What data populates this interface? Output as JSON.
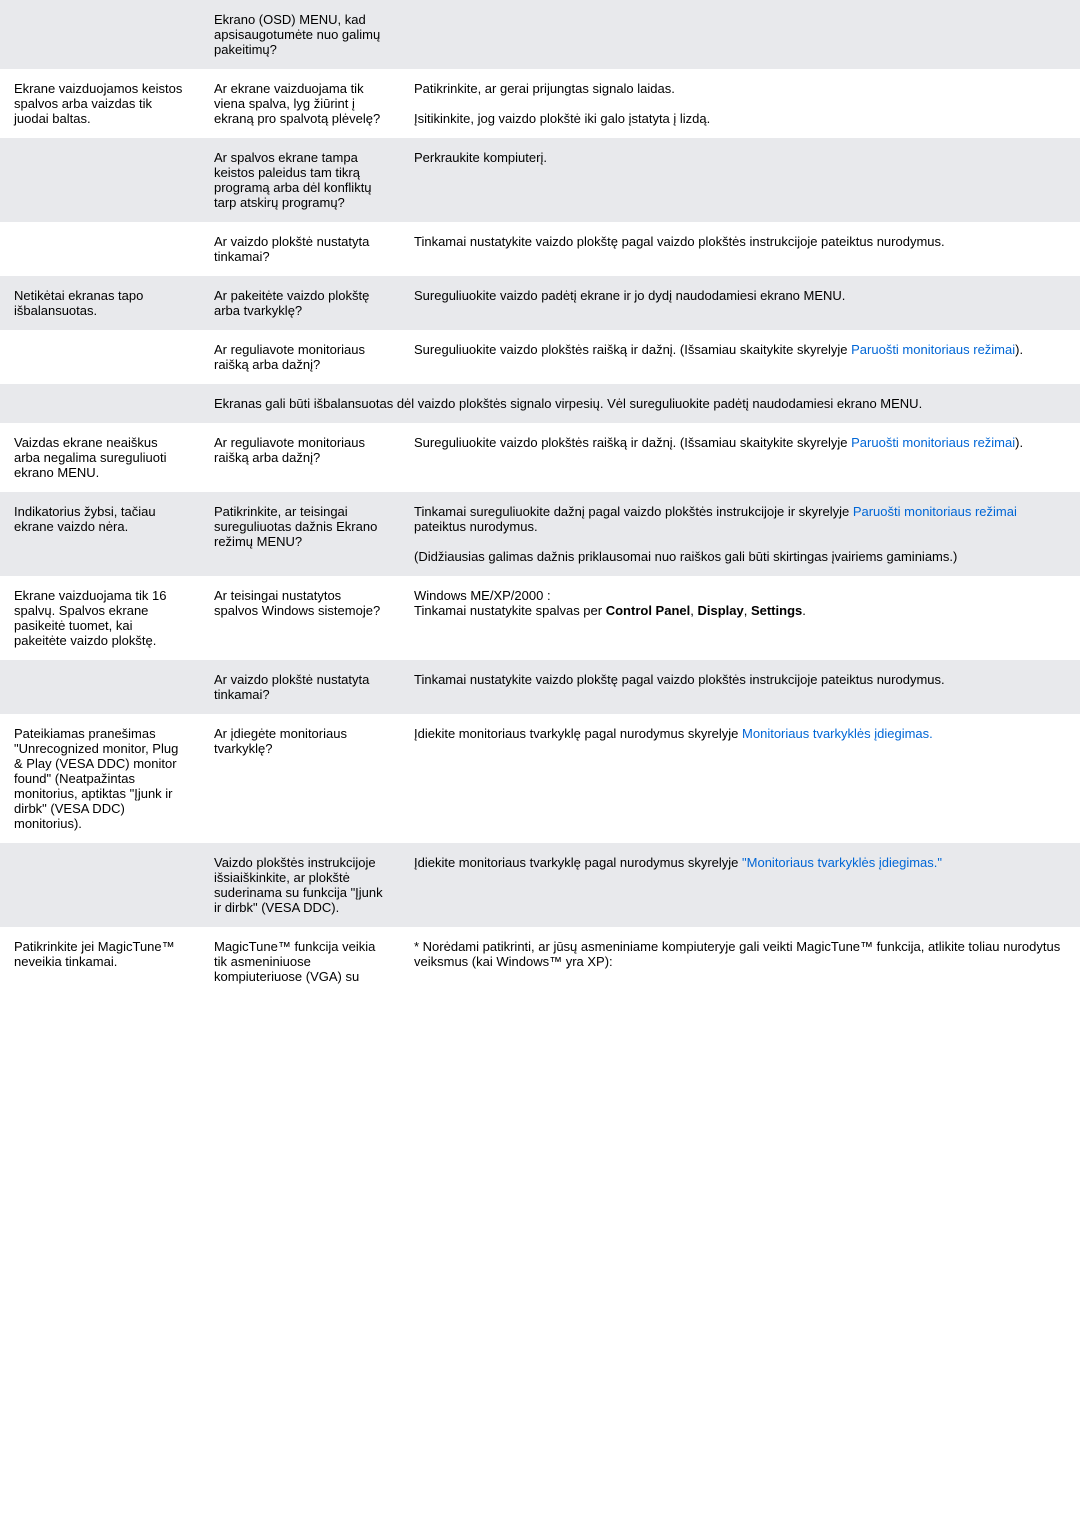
{
  "rows": [
    {
      "cls": "alt",
      "c1": "",
      "c2": "Ekrano (OSD) MENU, kad apsisaugotumėte nuo galimų pakeitimų?",
      "c3": ""
    },
    {
      "cls": "plain",
      "c1": "Ekrane vaizduojamos keistos spalvos arba vaizdas tik juodai baltas.",
      "c2": "Ar ekrane vaizduojama tik viena spalva, lyg žiūrint į ekraną pro spalvotą plėvelę?",
      "c3": "Patikrinkite, ar gerai prijungtas signalo laidas.<br><br>Įsitikinkite, jog vaizdo plokštė iki galo įstatyta į lizdą."
    },
    {
      "cls": "alt",
      "c1": "",
      "c2": "Ar spalvos ekrane tampa keistos paleidus tam tikrą programą arba dėl konfliktų tarp atskirų programų?",
      "c3": "Perkraukite kompiuterį."
    },
    {
      "cls": "plain",
      "c1": "",
      "c2": "Ar vaizdo plokštė nustatyta tinkamai?",
      "c3": "Tinkamai nustatykite vaizdo plokštę pagal vaizdo plokštės instrukcijoje pateiktus nurodymus."
    },
    {
      "cls": "alt",
      "c1": "Netikėtai ekranas tapo išbalansuotas.",
      "c2": "Ar pakeitėte vaizdo plokštę arba tvarkyklę?",
      "c3": "Sureguliuokite vaizdo padėtį ekrane ir jo dydį naudodamiesi ekrano MENU."
    },
    {
      "cls": "plain",
      "c1": "",
      "c2": "Ar reguliavote monitoriaus raišką arba dažnį?",
      "c3": "Sureguliuokite vaizdo plokštės raišką ir dažnį. (Išsamiau skaitykite skyrelyje <span class=\"inline-link\">Paruošti monitoriaus režimai</span>)."
    },
    {
      "cls": "alt",
      "c1": "",
      "c2": "",
      "c3": "Ekranas gali būti išbalansuotas dėl vaizdo plokštės signalo virpesių. Vėl sureguliuokite padėtį naudodamiesi ekrano MENU.",
      "span": 2
    },
    {
      "cls": "plain",
      "c1": "Vaizdas ekrane neaiškus arba negalima sureguliuoti ekrano MENU.",
      "c2": "Ar reguliavote monitoriaus raišką arba dažnį?",
      "c3": "Sureguliuokite vaizdo plokštės raišką ir dažnį. (Išsamiau skaitykite skyrelyje <span class=\"inline-link\">Paruošti monitoriaus režimai</span>)."
    },
    {
      "cls": "alt",
      "c1": "Indikatorius žybsi, tačiau ekrane vaizdo nėra.",
      "c2": "Patikrinkite, ar teisingai sureguliuotas dažnis Ekrano režimų MENU?",
      "c3": "Tinkamai sureguliuokite dažnį pagal vaizdo plokštės instrukcijoje ir skyrelyje <span class=\"inline-link\">Paruošti monitoriaus režimai</span> pateiktus nurodymus.<br><br>(Didžiausias galimas dažnis priklausomai nuo raiškos gali būti skirtingas įvairiems gaminiams.)"
    },
    {
      "cls": "plain",
      "c1": "Ekrane vaizduojama tik 16 spalvų. Spalvos ekrane pasikeitė tuomet, kai pakeitėte vaizdo plokštę.",
      "c2": "Ar teisingai nustatytos spalvos Windows sistemoje?",
      "c3": "Windows ME/XP/2000 :<br>Tinkamai nustatykite spalvas per <b>Control Panel</b>, <b>Display</b>, <b>Settings</b>."
    },
    {
      "cls": "alt",
      "c1": "",
      "c2": "Ar vaizdo plokštė nustatyta tinkamai?",
      "c3": "Tinkamai nustatykite vaizdo plokštę pagal vaizdo plokštės instrukcijoje pateiktus nurodymus."
    },
    {
      "cls": "plain",
      "c1": "Pateikiamas pranešimas \"Unrecognized monitor, Plug & Play (VESA DDC) monitor found\" (Neatpažintas monitorius, aptiktas \"Įjunk ir dirbk\" (VESA DDC) monitorius).",
      "c2": "Ar įdiegėte monitoriaus tvarkyklę?",
      "c3": "Įdiekite monitoriaus tvarkyklę pagal nurodymus skyrelyje <span class=\"inline-link\">Monitoriaus tvarkyklės įdiegimas.</span>"
    },
    {
      "cls": "alt",
      "c1": "",
      "c2": "Vaizdo plokštės instrukcijoje išsiaiškinkite, ar plokštė suderinama su funkcija \"Įjunk ir dirbk\" (VESA DDC).",
      "c3": "Įdiekite monitoriaus tvarkyklę pagal nurodymus skyrelyje <span class=\"inline-link\">\"Monitoriaus tvarkyklės įdiegimas.\"</span>"
    },
    {
      "cls": "plain",
      "c1": "Patikrinkite jei MagicTune™ neveikia tinkamai.",
      "c2": "MagicTune™ funkcija veikia tik asmeniniuose kompiuteriuose (VGA) su",
      "c3": "* Norėdami patikrinti, ar jūsų asmeniniame kompiuteryje gali veikti MagicTune™ funkcija, atlikite toliau nurodytus veiksmus (kai Windows™ yra XP):"
    }
  ]
}
